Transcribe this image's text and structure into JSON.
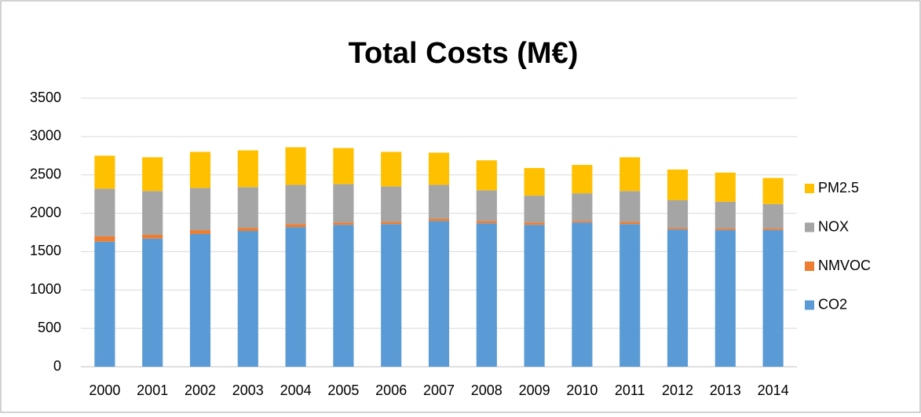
{
  "chart_data": {
    "type": "stacked-bar",
    "title": "Total Costs (M€)",
    "categories": [
      "2000",
      "2001",
      "2002",
      "2003",
      "2004",
      "2005",
      "2006",
      "2007",
      "2008",
      "2009",
      "2010",
      "2011",
      "2012",
      "2013",
      "2014"
    ],
    "series": [
      {
        "name": "CO2",
        "color": "#5b9bd5",
        "values": [
          1630,
          1670,
          1730,
          1770,
          1820,
          1850,
          1860,
          1900,
          1870,
          1850,
          1880,
          1860,
          1790,
          1780,
          1780
        ]
      },
      {
        "name": "NMVOC",
        "color": "#ed7d31",
        "values": [
          70,
          50,
          50,
          40,
          40,
          30,
          30,
          30,
          30,
          30,
          20,
          30,
          20,
          20,
          20
        ]
      },
      {
        "name": "NOX",
        "color": "#a5a5a5",
        "values": [
          620,
          570,
          550,
          530,
          510,
          500,
          460,
          440,
          400,
          350,
          360,
          400,
          360,
          350,
          320
        ]
      },
      {
        "name": "PM2.5",
        "color": "#ffc000",
        "values": [
          430,
          440,
          470,
          480,
          490,
          470,
          450,
          420,
          390,
          360,
          370,
          440,
          400,
          380,
          340
        ]
      }
    ],
    "ylim": [
      0,
      3500
    ],
    "yticks": [
      0,
      500,
      1000,
      1500,
      2000,
      2500,
      3000,
      3500
    ],
    "grid": true,
    "legend": "right"
  }
}
